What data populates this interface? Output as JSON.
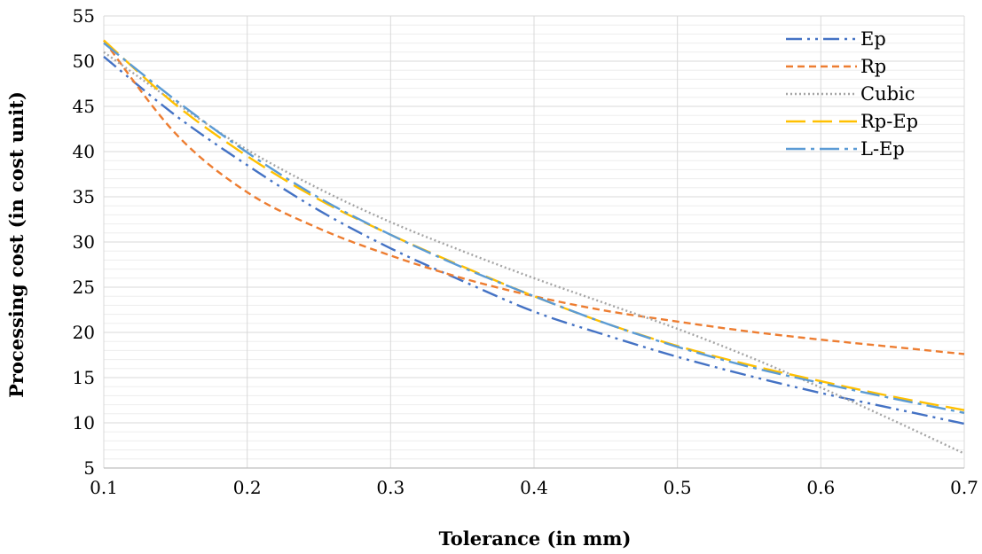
{
  "chart_data": {
    "type": "line",
    "title": "",
    "xlabel": "Tolerance (in mm)",
    "ylabel": "Processing cost (in cost unit)",
    "xlim": [
      0.1,
      0.7
    ],
    "ylim": [
      5,
      55
    ],
    "xticks": [
      "0.1",
      "0.2",
      "0.3",
      "0.4",
      "0.5",
      "0.6",
      "0.7"
    ],
    "yticks": [
      "5",
      "10",
      "15",
      "20",
      "25",
      "30",
      "35",
      "40",
      "45",
      "50",
      "55"
    ],
    "grid": true,
    "legend_position": "top-right",
    "x": [
      0.1,
      0.15,
      0.2,
      0.25,
      0.3,
      0.35,
      0.4,
      0.45,
      0.5,
      0.55,
      0.6,
      0.65,
      0.7
    ],
    "series": [
      {
        "name": "Ep",
        "color": "#4472C4",
        "dash": "dash-dot-dot",
        "values": [
          50.5,
          44.0,
          38.5,
          33.5,
          29.3,
          25.7,
          22.3,
          19.7,
          17.3,
          15.2,
          13.3,
          11.6,
          9.9
        ]
      },
      {
        "name": "Rp",
        "color": "#ED7D31",
        "dash": "dash",
        "values": [
          52.3,
          42.0,
          35.5,
          31.5,
          28.5,
          26.0,
          24.0,
          22.4,
          21.2,
          20.1,
          19.2,
          18.4,
          17.6
        ]
      },
      {
        "name": "Cubic",
        "color": "#A5A5A5",
        "dash": "dot",
        "values": [
          51.0,
          45.4,
          40.2,
          35.9,
          32.2,
          29.0,
          26.0,
          23.2,
          20.4,
          17.3,
          13.9,
          10.3,
          6.6
        ]
      },
      {
        "name": "Rp-Ep",
        "color": "#FFC000",
        "dash": "long-dash",
        "values": [
          52.3,
          45.2,
          39.5,
          34.7,
          30.8,
          27.3,
          24.0,
          21.0,
          18.5,
          16.4,
          14.6,
          12.9,
          11.4
        ]
      },
      {
        "name": "L-Ep",
        "color": "#5B9BD5",
        "dash": "long-dash-dot",
        "values": [
          52.0,
          45.7,
          39.9,
          34.9,
          30.8,
          27.2,
          24.0,
          21.0,
          18.4,
          16.2,
          14.4,
          12.7,
          11.1
        ]
      }
    ]
  }
}
